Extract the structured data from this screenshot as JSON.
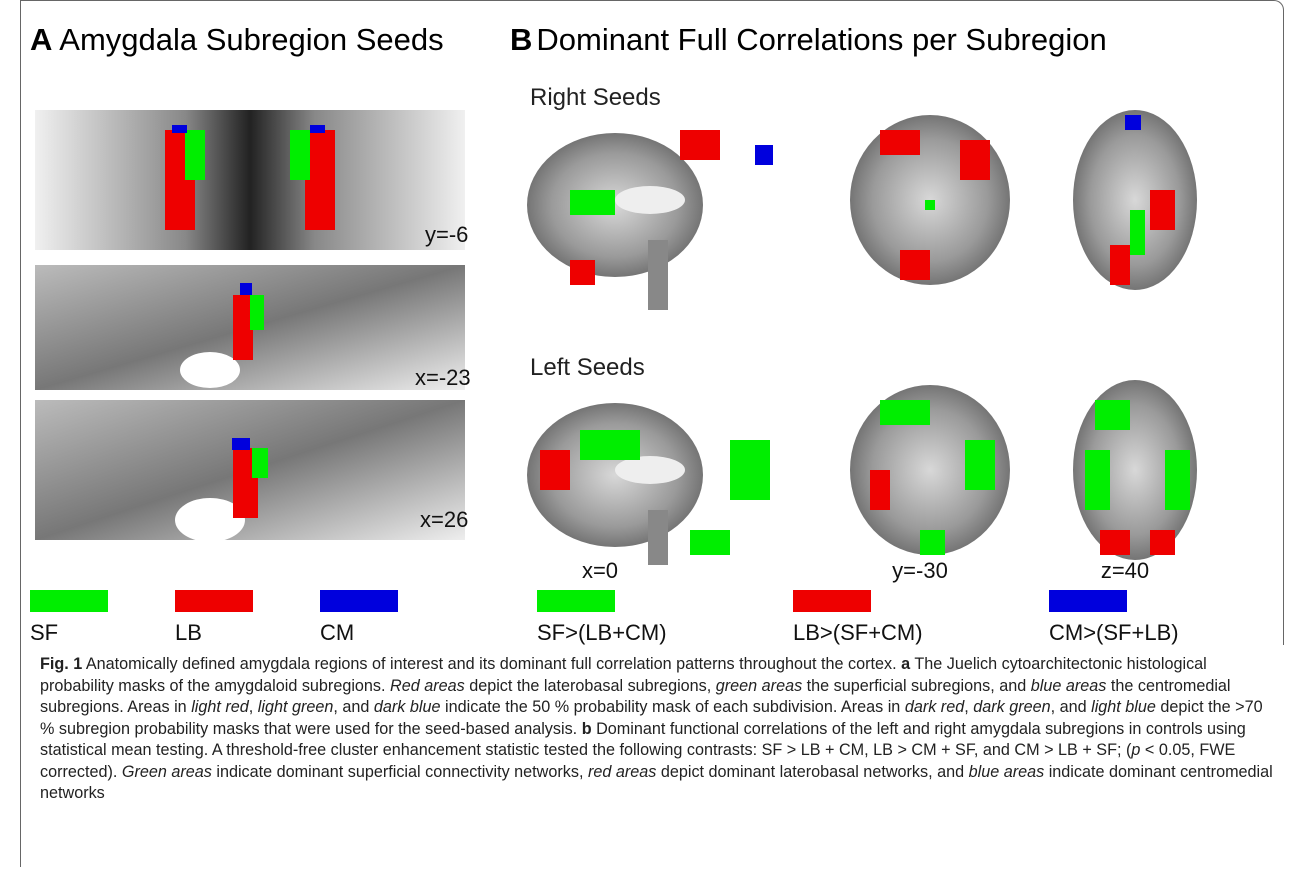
{
  "panel_a": {
    "letter": "A",
    "title": "Amygdala Subregion Seeds",
    "slices": [
      "y=-6",
      "x=-23",
      "x=26"
    ],
    "legend": [
      {
        "label": "SF",
        "color": "#00ee00"
      },
      {
        "label": "LB",
        "color": "#ee0000"
      },
      {
        "label": "CM",
        "color": "#0000dd"
      }
    ]
  },
  "panel_b": {
    "letter": "B",
    "title": "Dominant Full Correlations per Subregion",
    "rows": [
      "Right Seeds",
      "Left Seeds"
    ],
    "slices": [
      "x=0",
      "y=-30",
      "z=40"
    ],
    "legend": [
      {
        "label": "SF>(LB+CM)",
        "color": "#00ee00"
      },
      {
        "label": "LB>(SF+CM)",
        "color": "#ee0000"
      },
      {
        "label": "CM>(SF+LB)",
        "color": "#0000dd"
      }
    ]
  },
  "caption": [
    {
      "text": "Fig. 1",
      "style": "bold"
    },
    {
      "text": " Anatomically defined amygdala regions of interest and its dominant full correlation patterns throughout the cortex. ",
      "style": "normal"
    },
    {
      "text": "a",
      "style": "bold"
    },
    {
      "text": " The Juelich cytoarchitectonic histological probability masks of the amygdaloid subregions. ",
      "style": "normal"
    },
    {
      "text": "Red areas",
      "style": "italic"
    },
    {
      "text": " depict the laterobasal subregions, ",
      "style": "normal"
    },
    {
      "text": "green areas",
      "style": "italic"
    },
    {
      "text": " the superficial subregions, and ",
      "style": "normal"
    },
    {
      "text": "blue areas",
      "style": "italic"
    },
    {
      "text": " the centromedial subregions. Areas in ",
      "style": "normal"
    },
    {
      "text": "light red",
      "style": "italic"
    },
    {
      "text": ", ",
      "style": "normal"
    },
    {
      "text": "light green",
      "style": "italic"
    },
    {
      "text": ", and ",
      "style": "normal"
    },
    {
      "text": "dark blue",
      "style": "italic"
    },
    {
      "text": " indicate the 50 % probability mask of each subdivision. Areas in ",
      "style": "normal"
    },
    {
      "text": "dark red",
      "style": "italic"
    },
    {
      "text": ", ",
      "style": "normal"
    },
    {
      "text": "dark green",
      "style": "italic"
    },
    {
      "text": ", and ",
      "style": "normal"
    },
    {
      "text": "light blue",
      "style": "italic"
    },
    {
      "text": " depict the >70 % subregion probability masks that were used for the seed-based analysis. ",
      "style": "normal"
    },
    {
      "text": "b",
      "style": "bold"
    },
    {
      "text": " Dominant functional correlations of the left and right amygdala subregions in controls using statistical mean testing. A threshold-free cluster enhancement statistic tested the following contrasts: SF > LB + CM, LB > CM + SF, and CM > LB + SF; (",
      "style": "normal"
    },
    {
      "text": "p",
      "style": "italic"
    },
    {
      "text": " < 0.05, FWE corrected). ",
      "style": "normal"
    },
    {
      "text": "Green areas",
      "style": "italic"
    },
    {
      "text": " indicate dominant superficial connectivity networks, ",
      "style": "normal"
    },
    {
      "text": "red areas",
      "style": "italic"
    },
    {
      "text": " depict dominant laterobasal networks, and ",
      "style": "normal"
    },
    {
      "text": "blue areas",
      "style": "italic"
    },
    {
      "text": " indicate dominant centromedial networks",
      "style": "normal"
    }
  ]
}
